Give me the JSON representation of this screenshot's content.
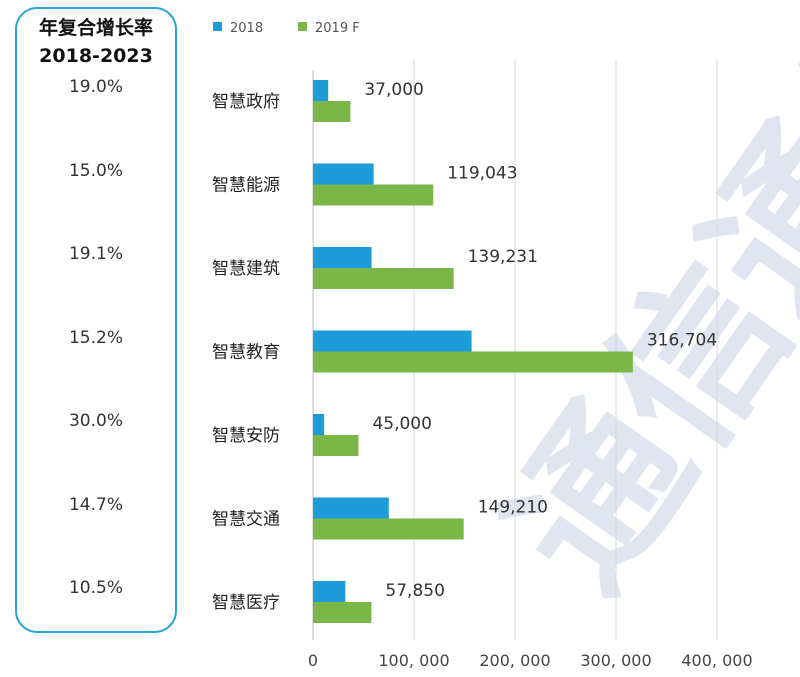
{
  "cagr_panel": {
    "title_line1": "年复合增长率",
    "title_line2": "2018-2023",
    "values": [
      "19.0%",
      "15.0%",
      "19.1%",
      "15.2%",
      "30.0%",
      "14.7%",
      "10.5%"
    ],
    "border_color": "#29a3d9"
  },
  "watermark": "通信通信",
  "chart_data": {
    "type": "bar",
    "orientation": "horizontal",
    "categories": [
      "智慧政府",
      "智慧能源",
      "智慧建筑",
      "智慧教育",
      "智慧安防",
      "智慧交通",
      "智慧医疗"
    ],
    "series": [
      {
        "name": "2018",
        "color": "#1e9cd7",
        "values": [
          15000,
          60000,
          58000,
          157000,
          11000,
          75000,
          32000
        ]
      },
      {
        "name": "2019 F",
        "color": "#7ab648",
        "values": [
          37000,
          119043,
          139231,
          316704,
          45000,
          149210,
          57850
        ]
      }
    ],
    "data_labels": [
      "37,000",
      "119,043",
      "139,231",
      "316,704",
      "45,000",
      "149,210",
      "57,850"
    ],
    "x_ticks": [
      0,
      100000,
      200000,
      300000,
      400000
    ],
    "x_tick_labels": [
      "0",
      "100, 000",
      "200, 000",
      "300, 000",
      "400, 000"
    ],
    "xlim": [
      0,
      400000
    ],
    "grid": true,
    "legend_position": "top"
  }
}
